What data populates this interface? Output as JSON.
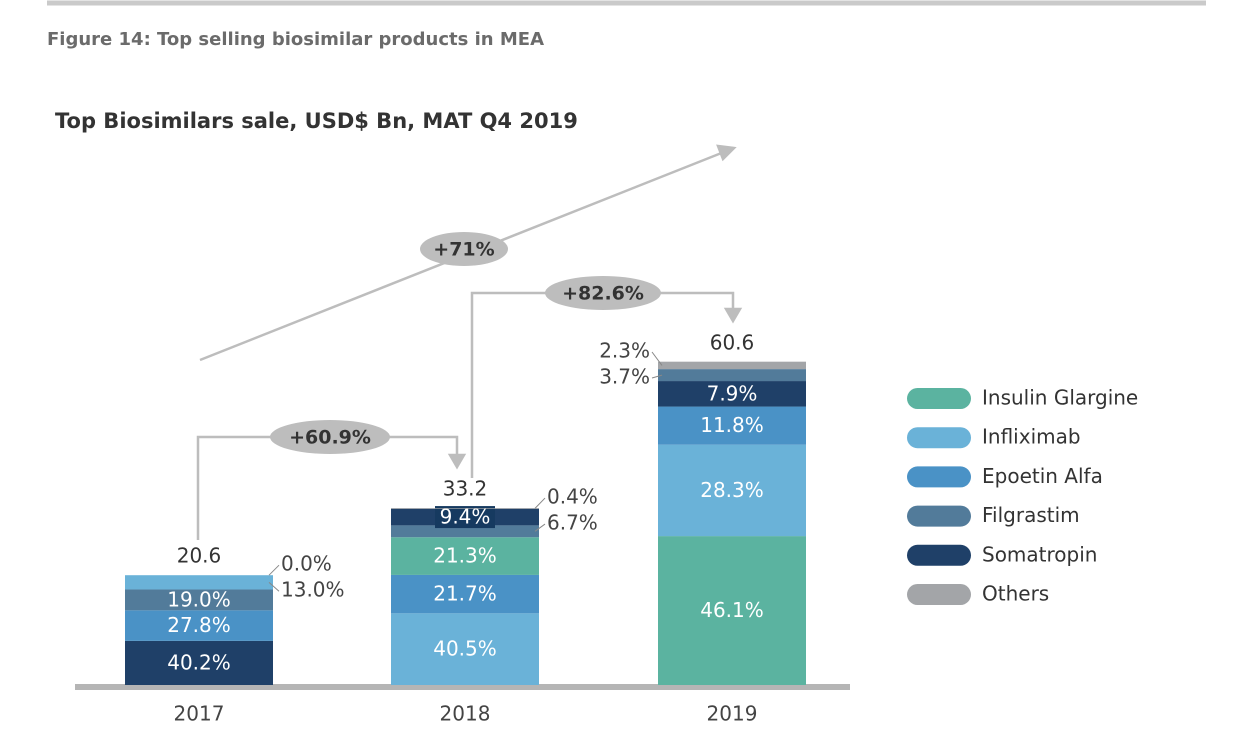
{
  "chart_data": {
    "type": "stacked-bar",
    "title": "Figure 14: Top selling biosimilar products in MEA",
    "subtitle": "Top Biosimilars sale, USD$ Bn, MAT Q4 2019",
    "series": [
      {
        "name": "Insulin Glargine",
        "color": "#5bb3a0"
      },
      {
        "name": "Infliximab",
        "color": "#6ab2d8"
      },
      {
        "name": "Epoetin Alfa",
        "color": "#4a92c6"
      },
      {
        "name": "Filgrastim",
        "color": "#527b9a"
      },
      {
        "name": "Somatropin",
        "color": "#1f4068"
      },
      {
        "name": "Others",
        "color": "#a3a5a8"
      }
    ],
    "stacks": [
      {
        "category": "2017",
        "total": 20.6,
        "segments": [
          {
            "series": "Somatropin",
            "value": 40.2,
            "label": "40.2%"
          },
          {
            "series": "Epoetin Alfa",
            "value": 27.8,
            "label": "27.8%"
          },
          {
            "series": "Filgrastim",
            "value": 19.0,
            "label": "19.0%"
          },
          {
            "series": "Infliximab",
            "value": 13.0,
            "label": "13.0%"
          },
          {
            "series": "Insulin Glargine",
            "value": 0.0,
            "label": "0.0%"
          }
        ]
      },
      {
        "category": "2018",
        "total": 33.2,
        "segments": [
          {
            "series": "Infliximab",
            "value": 40.5,
            "label": "40.5%"
          },
          {
            "series": "Epoetin Alfa",
            "value": 21.7,
            "label": "21.7%"
          },
          {
            "series": "Insulin Glargine",
            "value": 21.3,
            "label": "21.3%"
          },
          {
            "series": "Filgrastim",
            "value": 6.7,
            "label": "6.7%"
          },
          {
            "series": "Somatropin",
            "value": 9.4,
            "label": "9.4%"
          },
          {
            "series": "Others",
            "value": 0.4,
            "label": "0.4%"
          }
        ]
      },
      {
        "category": "2019",
        "total": 60.6,
        "segments": [
          {
            "series": "Insulin Glargine",
            "value": 46.1,
            "label": "46.1%"
          },
          {
            "series": "Infliximab",
            "value": 28.3,
            "label": "28.3%"
          },
          {
            "series": "Epoetin Alfa",
            "value": 11.8,
            "label": "11.8%"
          },
          {
            "series": "Somatropin",
            "value": 7.9,
            "label": "7.9%"
          },
          {
            "series": "Filgrastim",
            "value": 3.7,
            "label": "3.7%"
          },
          {
            "series": "Others",
            "value": 2.3,
            "label": "2.3%"
          }
        ]
      }
    ],
    "annotations": [
      "+60.9%",
      "+82.6%",
      "+71%"
    ]
  }
}
